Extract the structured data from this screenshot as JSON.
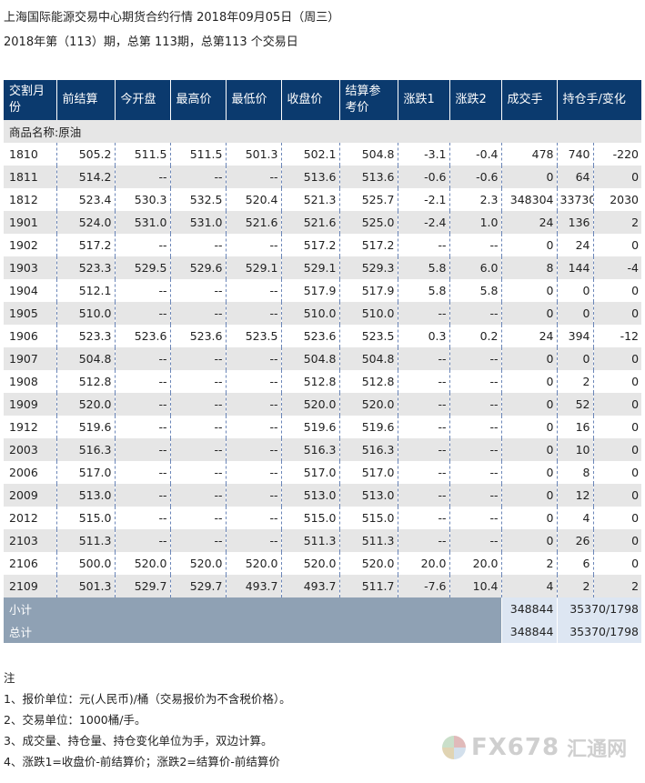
{
  "header": {
    "title": "上海国际能源交易中心期货合约行情 2018年09月05日（周三）",
    "subtitle": "2018年第（113）期，总第 113期，总第113 个交易日"
  },
  "table": {
    "columns": [
      "交割月份",
      "前结算",
      "今开盘",
      "最高价",
      "最低价",
      "收盘价",
      "结算参考价",
      "涨跌1",
      "涨跌2",
      "成交手",
      "持仓手/变化"
    ],
    "group_label": "商品名称:原油",
    "rows": [
      {
        "month": "1810",
        "prev": "505.2",
        "open": "511.5",
        "high": "511.5",
        "low": "501.3",
        "close": "502.1",
        "settle": "504.8",
        "chg1": "-3.1",
        "chg2": "-0.4",
        "vol": "478",
        "oi": "740",
        "oichg": "-220"
      },
      {
        "month": "1811",
        "prev": "514.2",
        "open": "--",
        "high": "--",
        "low": "--",
        "close": "513.6",
        "settle": "513.6",
        "chg1": "-0.6",
        "chg2": "-0.6",
        "vol": "0",
        "oi": "64",
        "oichg": "0"
      },
      {
        "month": "1812",
        "prev": "523.4",
        "open": "530.3",
        "high": "532.5",
        "low": "520.4",
        "close": "521.3",
        "settle": "525.7",
        "chg1": "-2.1",
        "chg2": "2.3",
        "vol": "348304",
        "oi": "33730",
        "oichg": "2030"
      },
      {
        "month": "1901",
        "prev": "524.0",
        "open": "531.0",
        "high": "531.0",
        "low": "521.6",
        "close": "521.6",
        "settle": "525.0",
        "chg1": "-2.4",
        "chg2": "1.0",
        "vol": "24",
        "oi": "136",
        "oichg": "2"
      },
      {
        "month": "1902",
        "prev": "517.2",
        "open": "--",
        "high": "--",
        "low": "--",
        "close": "517.2",
        "settle": "517.2",
        "chg1": "--",
        "chg2": "--",
        "vol": "0",
        "oi": "24",
        "oichg": "0"
      },
      {
        "month": "1903",
        "prev": "523.3",
        "open": "529.5",
        "high": "529.6",
        "low": "529.1",
        "close": "529.1",
        "settle": "529.3",
        "chg1": "5.8",
        "chg2": "6.0",
        "vol": "8",
        "oi": "144",
        "oichg": "-4"
      },
      {
        "month": "1904",
        "prev": "512.1",
        "open": "--",
        "high": "--",
        "low": "--",
        "close": "517.9",
        "settle": "517.9",
        "chg1": "5.8",
        "chg2": "5.8",
        "vol": "0",
        "oi": "0",
        "oichg": "0"
      },
      {
        "month": "1905",
        "prev": "510.0",
        "open": "--",
        "high": "--",
        "low": "--",
        "close": "510.0",
        "settle": "510.0",
        "chg1": "--",
        "chg2": "--",
        "vol": "0",
        "oi": "0",
        "oichg": "0"
      },
      {
        "month": "1906",
        "prev": "523.3",
        "open": "523.6",
        "high": "523.6",
        "low": "523.5",
        "close": "523.6",
        "settle": "523.5",
        "chg1": "0.3",
        "chg2": "0.2",
        "vol": "24",
        "oi": "394",
        "oichg": "-12"
      },
      {
        "month": "1907",
        "prev": "504.8",
        "open": "--",
        "high": "--",
        "low": "--",
        "close": "504.8",
        "settle": "504.8",
        "chg1": "--",
        "chg2": "--",
        "vol": "0",
        "oi": "0",
        "oichg": "0"
      },
      {
        "month": "1908",
        "prev": "512.8",
        "open": "--",
        "high": "--",
        "low": "--",
        "close": "512.8",
        "settle": "512.8",
        "chg1": "--",
        "chg2": "--",
        "vol": "0",
        "oi": "2",
        "oichg": "0"
      },
      {
        "month": "1909",
        "prev": "520.0",
        "open": "--",
        "high": "--",
        "low": "--",
        "close": "520.0",
        "settle": "520.0",
        "chg1": "--",
        "chg2": "--",
        "vol": "0",
        "oi": "52",
        "oichg": "0"
      },
      {
        "month": "1912",
        "prev": "519.6",
        "open": "--",
        "high": "--",
        "low": "--",
        "close": "519.6",
        "settle": "519.6",
        "chg1": "--",
        "chg2": "--",
        "vol": "0",
        "oi": "16",
        "oichg": "0"
      },
      {
        "month": "2003",
        "prev": "516.3",
        "open": "--",
        "high": "--",
        "low": "--",
        "close": "516.3",
        "settle": "516.3",
        "chg1": "--",
        "chg2": "--",
        "vol": "0",
        "oi": "10",
        "oichg": "0"
      },
      {
        "month": "2006",
        "prev": "517.0",
        "open": "--",
        "high": "--",
        "low": "--",
        "close": "517.0",
        "settle": "517.0",
        "chg1": "--",
        "chg2": "--",
        "vol": "0",
        "oi": "8",
        "oichg": "0"
      },
      {
        "month": "2009",
        "prev": "513.0",
        "open": "--",
        "high": "--",
        "low": "--",
        "close": "513.0",
        "settle": "513.0",
        "chg1": "--",
        "chg2": "--",
        "vol": "0",
        "oi": "12",
        "oichg": "0"
      },
      {
        "month": "2012",
        "prev": "515.0",
        "open": "--",
        "high": "--",
        "low": "--",
        "close": "515.0",
        "settle": "515.0",
        "chg1": "--",
        "chg2": "--",
        "vol": "0",
        "oi": "4",
        "oichg": "0"
      },
      {
        "month": "2103",
        "prev": "511.3",
        "open": "--",
        "high": "--",
        "low": "--",
        "close": "511.3",
        "settle": "511.3",
        "chg1": "--",
        "chg2": "--",
        "vol": "0",
        "oi": "26",
        "oichg": "0"
      },
      {
        "month": "2106",
        "prev": "500.0",
        "open": "520.0",
        "high": "520.0",
        "low": "520.0",
        "close": "520.0",
        "settle": "520.0",
        "chg1": "20.0",
        "chg2": "20.0",
        "vol": "2",
        "oi": "6",
        "oichg": "0"
      },
      {
        "month": "2109",
        "prev": "501.3",
        "open": "529.7",
        "high": "529.7",
        "low": "493.7",
        "close": "493.7",
        "settle": "511.7",
        "chg1": "-7.6",
        "chg2": "10.4",
        "vol": "4",
        "oi": "2",
        "oichg": "2"
      }
    ],
    "subtotal": {
      "label": "小计",
      "vol": "348844",
      "oi": "35370/1798"
    },
    "total": {
      "label": "总计",
      "vol": "348844",
      "oi": "35370/1798"
    }
  },
  "notes": {
    "heading": "注",
    "items": [
      "1、报价单位：元(人民币)/桶（交易报价为不含税价格）。",
      "2、交易单位：1000桶/手。",
      "3、成交量、持仓量、持仓变化单位为手，双边计算。",
      "4、涨跌1=收盘价-前结算价；涨跌2=结算价-前结算价"
    ]
  },
  "watermark": {
    "brand": "FX678",
    "brand_cn": "汇通网"
  }
}
